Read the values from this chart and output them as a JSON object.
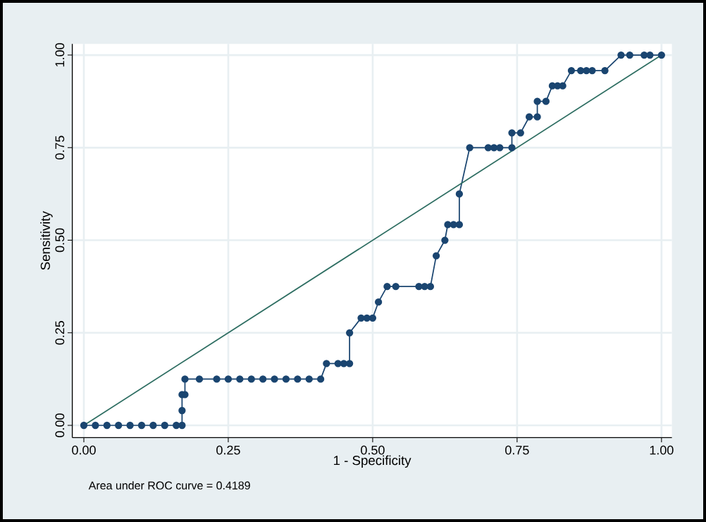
{
  "chart_data": {
    "type": "line",
    "xlabel": "1 - Specificity",
    "ylabel": "Sensitivity",
    "annotations": [
      "Area under ROC curve = 0.4189"
    ],
    "xlim": [
      -0.02,
      1.018
    ],
    "ylim": [
      -0.033,
      1.03
    ],
    "xticks": [
      {
        "value": 0,
        "label": "0.00"
      },
      {
        "value": 0.25,
        "label": "0.25"
      },
      {
        "value": 0.5,
        "label": "0.50"
      },
      {
        "value": 0.75,
        "label": "0.75"
      },
      {
        "value": 1,
        "label": "1.00"
      }
    ],
    "yticks": [
      {
        "value": 0,
        "label": "0.00"
      },
      {
        "value": 0.25,
        "label": "0.25"
      },
      {
        "value": 0.5,
        "label": "0.50"
      },
      {
        "value": 0.75,
        "label": "0.75"
      },
      {
        "value": 1,
        "label": "1.00"
      }
    ],
    "grid": true,
    "series": [
      {
        "color": "#1a4570",
        "marker": "circle",
        "line_style": "solid",
        "x": [
          0,
          0.02,
          0.04,
          0.06,
          0.08,
          0.1,
          0.12,
          0.14,
          0.16,
          0.17,
          0.17,
          0.17,
          0.175,
          0.175,
          0.2,
          0.23,
          0.25,
          0.27,
          0.29,
          0.31,
          0.33,
          0.35,
          0.37,
          0.39,
          0.41,
          0.42,
          0.44,
          0.45,
          0.46,
          0.46,
          0.48,
          0.49,
          0.5,
          0.51,
          0.525,
          0.54,
          0.58,
          0.59,
          0.6,
          0.61,
          0.625,
          0.63,
          0.64,
          0.65,
          0.65,
          0.668,
          0.7,
          0.71,
          0.72,
          0.741,
          0.741,
          0.756,
          0.771,
          0.785,
          0.785,
          0.8,
          0.811,
          0.82,
          0.829,
          0.844,
          0.86,
          0.87,
          0.88,
          0.902,
          0.93,
          0.945,
          0.97,
          0.98,
          1
        ],
        "values": [
          0,
          0,
          0,
          0,
          0,
          0,
          0,
          0,
          0,
          0,
          0.04,
          0.083,
          0.083,
          0.125,
          0.125,
          0.125,
          0.125,
          0.125,
          0.125,
          0.125,
          0.125,
          0.125,
          0.125,
          0.125,
          0.125,
          0.167,
          0.167,
          0.167,
          0.167,
          0.25,
          0.29,
          0.29,
          0.29,
          0.333,
          0.375,
          0.375,
          0.375,
          0.375,
          0.375,
          0.458,
          0.5,
          0.542,
          0.542,
          0.542,
          0.625,
          0.75,
          0.75,
          0.75,
          0.75,
          0.75,
          0.79,
          0.79,
          0.833,
          0.833,
          0.875,
          0.875,
          0.917,
          0.917,
          0.917,
          0.958,
          0.958,
          0.958,
          0.958,
          0.958,
          1,
          1,
          1,
          1,
          1
        ]
      },
      {
        "color": "#2e6e62",
        "marker": "none",
        "line_style": "solid",
        "x": [
          0,
          1
        ],
        "values": [
          0,
          1
        ]
      }
    ]
  }
}
